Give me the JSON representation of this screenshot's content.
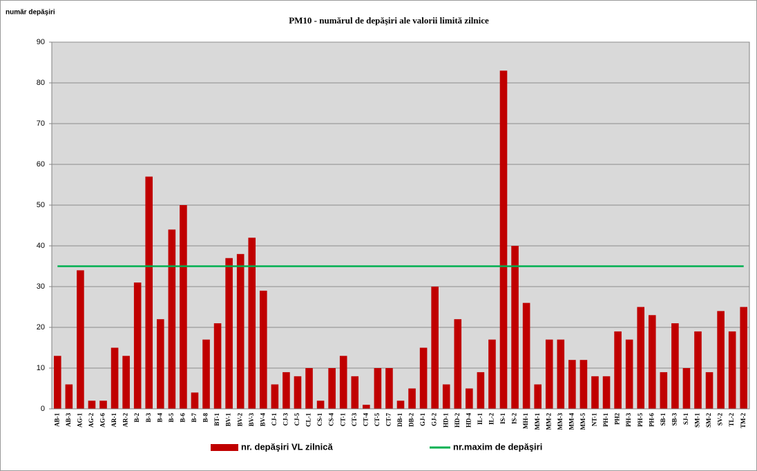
{
  "chart_data": {
    "type": "bar",
    "title": "PM10 - numărul  de depăşiri ale valorii limită zilnice",
    "y_label": "număr depăşiri",
    "categories": [
      "AB-1",
      "AB-3",
      "AG-1",
      "AG-2",
      "AG-6",
      "AR-1",
      "AR-2",
      "B-2",
      "B-3",
      "B-4",
      "B-5",
      "B-6",
      "B-7",
      "B-8",
      "BT-1",
      "BV-1",
      "BV-2",
      "BV-3",
      "BV-4",
      "CJ-1",
      "CJ-3",
      "CJ-5",
      "CL-1",
      "CS-1",
      "CS-4",
      "CT-1",
      "CT-3",
      "CT-4",
      "CT-5",
      "CT-7",
      "DB-1",
      "DB-2",
      "GJ-1",
      "GJ-2",
      "HD-1",
      "HD-2",
      "HD-4",
      "IL-1",
      "IL-2",
      "IS-1",
      "IS-2",
      "MH-1",
      "MM-1",
      "MM-2",
      "MM-3",
      "MM-4",
      "MM-5",
      "NT-1",
      "PH-1",
      "PH2",
      "PH-3",
      "PH-5",
      "PH-6",
      "SB-1",
      "SB-3",
      "SJ-1",
      "SM-1",
      "SM-2",
      "SV-2",
      "TL-2",
      "TM-2"
    ],
    "series": [
      {
        "name": "nr. depăşiri  VL zilnică",
        "type": "bar",
        "color": "#c00000",
        "values": [
          13,
          6,
          34,
          2,
          2,
          15,
          13,
          31,
          57,
          22,
          44,
          50,
          4,
          17,
          21,
          37,
          38,
          42,
          29,
          6,
          9,
          8,
          10,
          2,
          10,
          13,
          8,
          1,
          10,
          10,
          2,
          5,
          15,
          30,
          6,
          22,
          5,
          9,
          17,
          83,
          40,
          26,
          6,
          17,
          17,
          12,
          12,
          8,
          8,
          19,
          17,
          25,
          23,
          9,
          21,
          10,
          19,
          9,
          24,
          19,
          25
        ]
      },
      {
        "name": "nr.maxim de depăşiri",
        "type": "line",
        "color": "#00b050",
        "values": [
          35,
          35,
          35,
          35,
          35,
          35,
          35,
          35,
          35,
          35,
          35,
          35,
          35,
          35,
          35,
          35,
          35,
          35,
          35,
          35,
          35,
          35,
          35,
          35,
          35,
          35,
          35,
          35,
          35,
          35,
          35,
          35,
          35,
          35,
          35,
          35,
          35,
          35,
          35,
          35,
          35,
          35,
          35,
          35,
          35,
          35,
          35,
          35,
          35,
          35,
          35,
          35,
          35,
          35,
          35,
          35,
          35,
          35,
          35,
          35,
          35
        ]
      }
    ],
    "ylim": [
      0,
      90
    ],
    "yticks": [
      0,
      10,
      20,
      30,
      40,
      50,
      60,
      70,
      80,
      90
    ],
    "grid": true,
    "legend": "bottom"
  }
}
